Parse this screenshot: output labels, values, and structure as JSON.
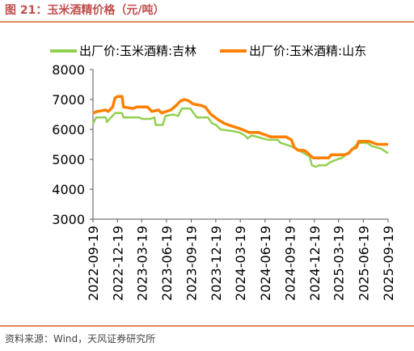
{
  "figure_title": "图 21：玉米酒精价格（元/吨）",
  "source_note": "资料来源：Wind，天风证券研究所",
  "chart_data": {
    "type": "line",
    "title": "",
    "xlabel": "",
    "ylabel": "",
    "ylim": [
      3000,
      8000
    ],
    "y_ticks": [
      "3000",
      "4000",
      "5000",
      "6000",
      "7000",
      "8000"
    ],
    "x_range": [
      "2022-09-19",
      "2025-09-19"
    ],
    "x_ticks": [
      "2022-09-19",
      "2022-12-19",
      "2023-03-19",
      "2023-06-19",
      "2023-09-19",
      "2023-12-19",
      "2024-03-19",
      "2024-06-19",
      "2024-09-19",
      "2024-12-19",
      "2025-03-19",
      "2025-06-19",
      "2025-09-19"
    ],
    "grid": false,
    "legend_position": "top",
    "series": [
      {
        "name": "出厂价:玉米酒精:吉林",
        "color": "#92d050",
        "points": [
          [
            "2022-09-19",
            6200
          ],
          [
            "2022-10-01",
            6400
          ],
          [
            "2022-11-05",
            6400
          ],
          [
            "2022-11-10",
            6250
          ],
          [
            "2022-11-25",
            6400
          ],
          [
            "2022-12-10",
            6550
          ],
          [
            "2023-01-05",
            6550
          ],
          [
            "2023-01-10",
            6400
          ],
          [
            "2023-03-10",
            6400
          ],
          [
            "2023-03-20",
            6350
          ],
          [
            "2023-04-20",
            6350
          ],
          [
            "2023-05-05",
            6400
          ],
          [
            "2023-05-10",
            6150
          ],
          [
            "2023-06-05",
            6150
          ],
          [
            "2023-06-15",
            6450
          ],
          [
            "2023-07-15",
            6500
          ],
          [
            "2023-08-01",
            6450
          ],
          [
            "2023-08-15",
            6700
          ],
          [
            "2023-09-15",
            6700
          ],
          [
            "2023-10-10",
            6400
          ],
          [
            "2023-11-20",
            6400
          ],
          [
            "2023-12-05",
            6200
          ],
          [
            "2023-12-20",
            6150
          ],
          [
            "2024-01-05",
            6000
          ],
          [
            "2024-02-15",
            5950
          ],
          [
            "2024-03-15",
            5900
          ],
          [
            "2024-04-05",
            5800
          ],
          [
            "2024-04-15",
            5700
          ],
          [
            "2024-05-01",
            5800
          ],
          [
            "2024-06-10",
            5700
          ],
          [
            "2024-07-01",
            5650
          ],
          [
            "2024-08-05",
            5650
          ],
          [
            "2024-08-15",
            5550
          ],
          [
            "2024-09-20",
            5450
          ],
          [
            "2024-10-15",
            5350
          ],
          [
            "2024-11-01",
            5250
          ],
          [
            "2024-12-01",
            5100
          ],
          [
            "2024-12-10",
            4800
          ],
          [
            "2024-12-25",
            4750
          ],
          [
            "2025-01-05",
            4800
          ],
          [
            "2025-02-01",
            4800
          ],
          [
            "2025-02-15",
            4900
          ],
          [
            "2025-03-15",
            5000
          ],
          [
            "2025-04-01",
            5050
          ],
          [
            "2025-04-20",
            5200
          ],
          [
            "2025-05-05",
            5300
          ],
          [
            "2025-05-25",
            5500
          ],
          [
            "2025-06-10",
            5550
          ],
          [
            "2025-07-01",
            5550
          ],
          [
            "2025-07-20",
            5450
          ],
          [
            "2025-08-05",
            5400
          ],
          [
            "2025-08-25",
            5350
          ],
          [
            "2025-09-19",
            5200
          ]
        ]
      },
      {
        "name": "出厂价:玉米酒精:山东",
        "color": "#ff7f00",
        "points": [
          [
            "2022-09-19",
            6550
          ],
          [
            "2022-10-05",
            6600
          ],
          [
            "2022-11-05",
            6650
          ],
          [
            "2022-11-15",
            6600
          ],
          [
            "2022-12-01",
            6750
          ],
          [
            "2022-12-10",
            7050
          ],
          [
            "2022-12-20",
            7100
          ],
          [
            "2023-01-05",
            7100
          ],
          [
            "2023-01-10",
            6750
          ],
          [
            "2023-02-15",
            6700
          ],
          [
            "2023-03-01",
            6750
          ],
          [
            "2023-04-10",
            6750
          ],
          [
            "2023-04-25",
            6600
          ],
          [
            "2023-05-20",
            6650
          ],
          [
            "2023-06-01",
            6550
          ],
          [
            "2023-07-05",
            6650
          ],
          [
            "2023-07-25",
            6800
          ],
          [
            "2023-08-10",
            6950
          ],
          [
            "2023-08-25",
            7000
          ],
          [
            "2023-09-10",
            6950
          ],
          [
            "2023-09-25",
            6850
          ],
          [
            "2023-10-25",
            6800
          ],
          [
            "2023-11-10",
            6750
          ],
          [
            "2023-12-01",
            6500
          ],
          [
            "2024-01-01",
            6300
          ],
          [
            "2024-01-20",
            6200
          ],
          [
            "2024-02-20",
            6100
          ],
          [
            "2024-03-10",
            6050
          ],
          [
            "2024-03-25",
            6000
          ],
          [
            "2024-04-20",
            5900
          ],
          [
            "2024-05-25",
            5900
          ],
          [
            "2024-06-10",
            5850
          ],
          [
            "2024-06-25",
            5800
          ],
          [
            "2024-07-10",
            5750
          ],
          [
            "2024-09-05",
            5750
          ],
          [
            "2024-09-25",
            5650
          ],
          [
            "2024-10-05",
            5400
          ],
          [
            "2024-10-20",
            5300
          ],
          [
            "2024-11-10",
            5300
          ],
          [
            "2024-11-20",
            5250
          ],
          [
            "2024-12-01",
            5150
          ],
          [
            "2024-12-15",
            5050
          ],
          [
            "2025-02-10",
            5050
          ],
          [
            "2025-02-20",
            5150
          ],
          [
            "2025-04-10",
            5150
          ],
          [
            "2025-04-25",
            5200
          ],
          [
            "2025-05-10",
            5350
          ],
          [
            "2025-05-25",
            5400
          ],
          [
            "2025-06-01",
            5600
          ],
          [
            "2025-07-10",
            5600
          ],
          [
            "2025-07-25",
            5550
          ],
          [
            "2025-08-10",
            5500
          ],
          [
            "2025-09-19",
            5500
          ]
        ]
      }
    ]
  }
}
